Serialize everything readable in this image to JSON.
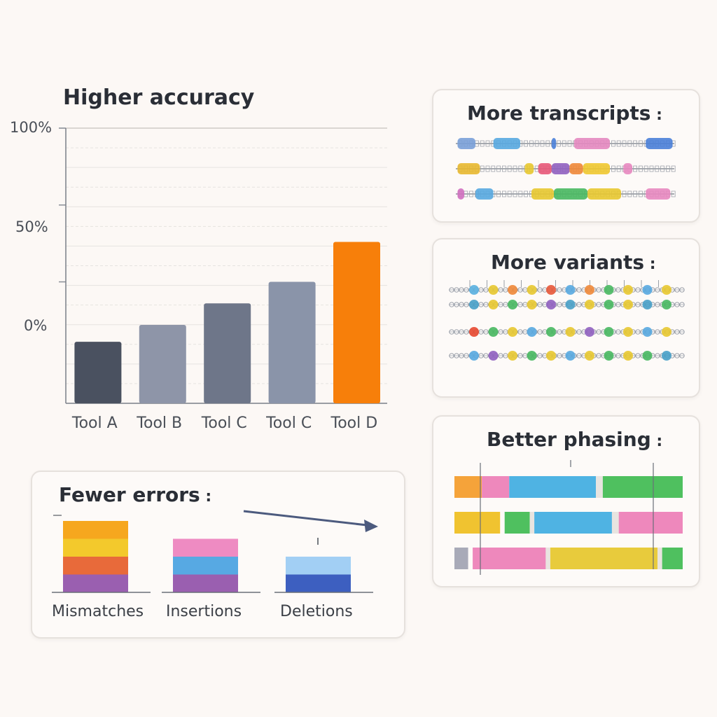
{
  "chart_data": {
    "type": "bar",
    "title": "Higher accuracy",
    "categories": [
      "Tool A",
      "Tool B",
      "Tool C",
      "Tool C",
      "Tool D"
    ],
    "values": [
      -39,
      -28,
      -14,
      0,
      26
    ],
    "colors": [
      "#4a5160",
      "#8e95a8",
      "#6e7689",
      "#8a94a9",
      "#f77f0a"
    ],
    "yticks": [
      "100%",
      "50%",
      "0%"
    ],
    "ytick_values": [
      100,
      50,
      0
    ],
    "ylim": [
      -79,
      100
    ],
    "grid": true
  },
  "transcripts": {
    "title": "More transcripts",
    "tracks": [
      {
        "segments": [
          [
            "#7aa0d8",
            0.02,
            0.1
          ],
          [
            "#58a8e0",
            0.18,
            0.3
          ],
          [
            "#4a7fd8",
            0.44,
            0.46
          ],
          [
            "#e488c0",
            0.54,
            0.7
          ],
          [
            "#4a7fd8",
            0.86,
            0.98
          ]
        ]
      },
      {
        "segments": [
          [
            "#e8b830",
            0.02,
            0.12
          ],
          [
            "#e8c830",
            0.32,
            0.36
          ],
          [
            "#e85878",
            0.38,
            0.44
          ],
          [
            "#9060c0",
            0.44,
            0.52
          ],
          [
            "#f08838",
            0.52,
            0.58
          ],
          [
            "#f0c830",
            0.58,
            0.7
          ],
          [
            "#e888c0",
            0.76,
            0.8
          ]
        ]
      },
      {
        "segments": [
          [
            "#d070c0",
            0.02,
            0.05
          ],
          [
            "#58a8e0",
            0.1,
            0.18
          ],
          [
            "#e8c830",
            0.35,
            0.45
          ],
          [
            "#48b860",
            0.45,
            0.6
          ],
          [
            "#e8c830",
            0.6,
            0.75
          ],
          [
            "#e888c0",
            0.86,
            0.97
          ]
        ]
      }
    ]
  },
  "variants": {
    "title": "More variants",
    "rows": [
      [
        "#5ab0e0",
        "#e8c830",
        "#f08838",
        "#e8c830",
        "#e85838",
        "#58a8e0",
        "#f08838",
        "#48b860",
        "#e8c830",
        "#58a8e0",
        "#e8c830"
      ],
      [
        "#48a0c8",
        "#e8c830",
        "#48b860",
        "#e8c830",
        "#9060c0",
        "#48a0c8",
        "#e8c830",
        "#48b860",
        "#e8c830",
        "#48a0c8",
        "#48b860"
      ],
      [
        "#e84830",
        "#48b860",
        "#e8c830",
        "#58a8e0",
        "#48b860",
        "#e8c830",
        "#9060c0",
        "#48b860",
        "#e8c830",
        "#58a8e0",
        "#e8c830"
      ],
      [
        "#58a8e0",
        "#9060c0",
        "#e8c830",
        "#48b860",
        "#e8c830",
        "#58a8e0",
        "#e8c830",
        "#48b860",
        "#e8c830",
        "#48b860",
        "#48a0c8"
      ]
    ]
  },
  "phasing": {
    "title": "Better phasing",
    "bars": [
      [
        [
          "#f5a33a",
          0.0,
          0.12
        ],
        [
          "#ee88bc",
          0.12,
          0.24
        ],
        [
          "#4fb3e3",
          0.24,
          0.62
        ],
        [
          "#e8e4e0",
          0.62,
          0.65
        ],
        [
          "#4fc05f",
          0.65,
          1.0
        ]
      ],
      [
        [
          "#f0c330",
          0.0,
          0.2
        ],
        [
          "#4fc05f",
          0.22,
          0.33
        ],
        [
          "#e8e4e0",
          0.33,
          0.35
        ],
        [
          "#4fb3e3",
          0.35,
          0.69
        ],
        [
          "#e8e4e0",
          0.69,
          0.72
        ],
        [
          "#ee88bc",
          0.72,
          1.0
        ]
      ],
      [
        [
          "#a8aab8",
          0.0,
          0.06
        ],
        [
          "#ee88bc",
          0.08,
          0.4
        ],
        [
          "#e8e4e0",
          0.4,
          0.42
        ],
        [
          "#e8cb3c",
          0.42,
          0.89
        ],
        [
          "#e8e4e0",
          0.89,
          0.91
        ],
        [
          "#4fc05f",
          0.91,
          1.0
        ]
      ]
    ]
  },
  "errors": {
    "title": "Fewer errors",
    "groups": [
      {
        "label": "Mismatches",
        "colors": [
          "#9a5fb0",
          "#e86a3a",
          "#f3c92c",
          "#f6a71e"
        ]
      },
      {
        "label": "Insertions",
        "colors": [
          "#9a5fb0",
          "#57a9e3",
          "#ee8bc2"
        ]
      },
      {
        "label": "Deletions",
        "colors": [
          "#3d5fc0",
          "#a2cff4"
        ]
      }
    ]
  }
}
